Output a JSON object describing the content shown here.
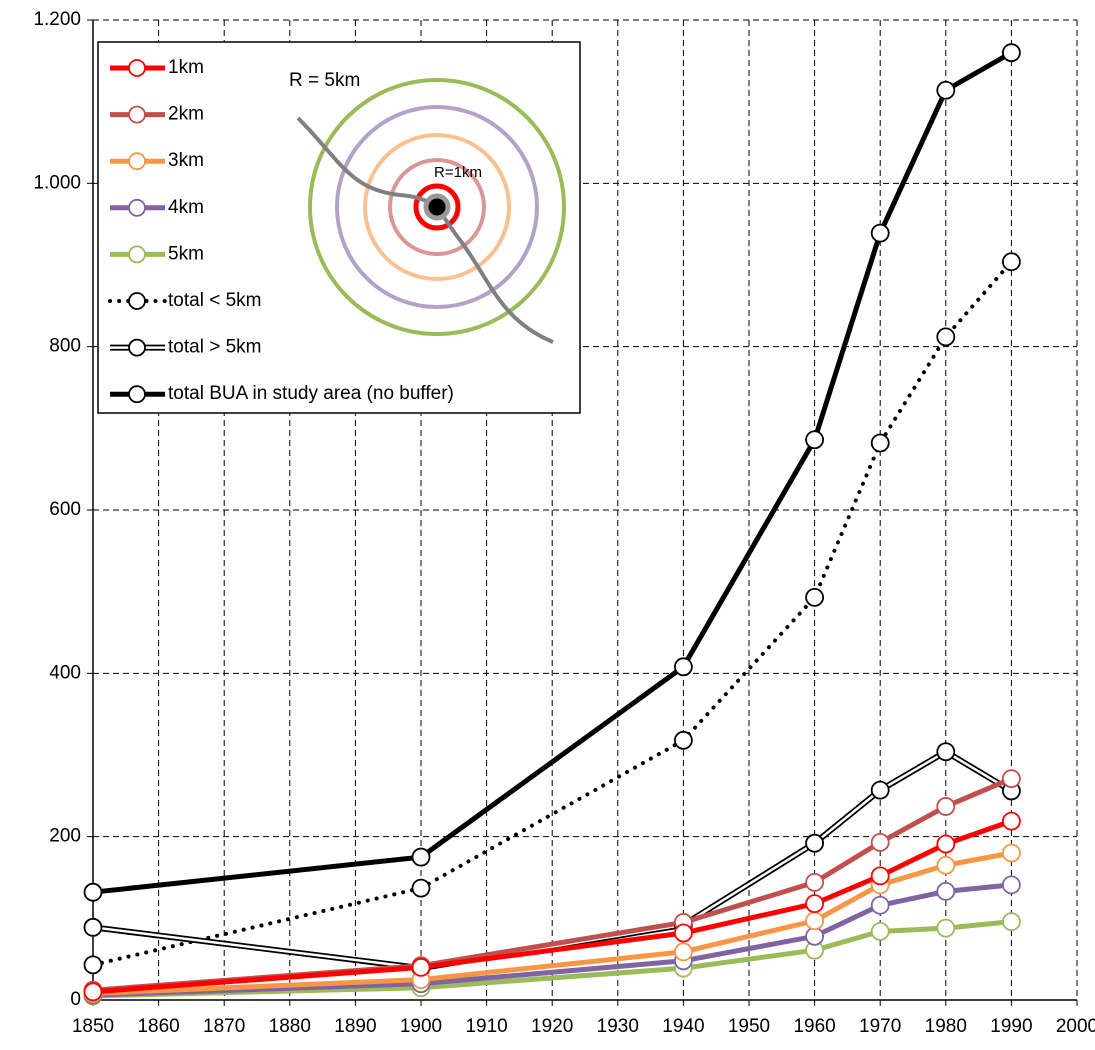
{
  "chart_data": {
    "type": "line",
    "x": [
      1850,
      1900,
      1940,
      1960,
      1970,
      1980,
      1990
    ],
    "series": [
      {
        "name": "total BUA in study area (no buffer)",
        "color": "#000000",
        "style": "solid",
        "values": [
          132,
          175,
          408,
          686,
          939,
          1114,
          1160
        ]
      },
      {
        "name": "total < 5km",
        "color": "#000000",
        "style": "dotted",
        "values": [
          43,
          137,
          318,
          493,
          682,
          812,
          904
        ]
      },
      {
        "name": "total > 5km",
        "color": "#000000",
        "style": "double",
        "values": [
          89,
          39,
          92,
          192,
          257,
          304,
          256
        ]
      },
      {
        "name": "5km",
        "color": "#9bbb59",
        "style": "solid",
        "values": [
          5,
          15,
          39,
          61,
          84,
          88,
          96
        ]
      },
      {
        "name": "4km",
        "color": "#8064a2",
        "style": "solid",
        "values": [
          6,
          20,
          48,
          78,
          116,
          133,
          141
        ]
      },
      {
        "name": "3km",
        "color": "#f79646",
        "style": "solid",
        "values": [
          8,
          25,
          59,
          97,
          141,
          165,
          180
        ]
      },
      {
        "name": "2km",
        "color": "#c0504d",
        "style": "solid",
        "values": [
          12,
          42,
          95,
          144,
          193,
          237,
          271
        ]
      },
      {
        "name": "1km",
        "color": "#ff0000",
        "style": "solid",
        "values": [
          10,
          40,
          82,
          118,
          152,
          191,
          219
        ]
      }
    ],
    "legend_order": [
      7,
      6,
      5,
      4,
      3,
      1,
      2,
      0
    ],
    "xlim": [
      1850,
      2000
    ],
    "xticks": [
      1850,
      1860,
      1870,
      1880,
      1890,
      1900,
      1910,
      1920,
      1930,
      1940,
      1950,
      1960,
      1970,
      1980,
      1990,
      2000
    ],
    "ylim": [
      0,
      1200
    ],
    "yticks": [
      0,
      200,
      400,
      600,
      800,
      {
        "value": 1000,
        "label": "1.000"
      },
      {
        "value": 1200,
        "label": "1.200"
      }
    ],
    "grid": true,
    "legend": "upper left",
    "annotations": [
      "R = 5km",
      "R=1km"
    ]
  }
}
